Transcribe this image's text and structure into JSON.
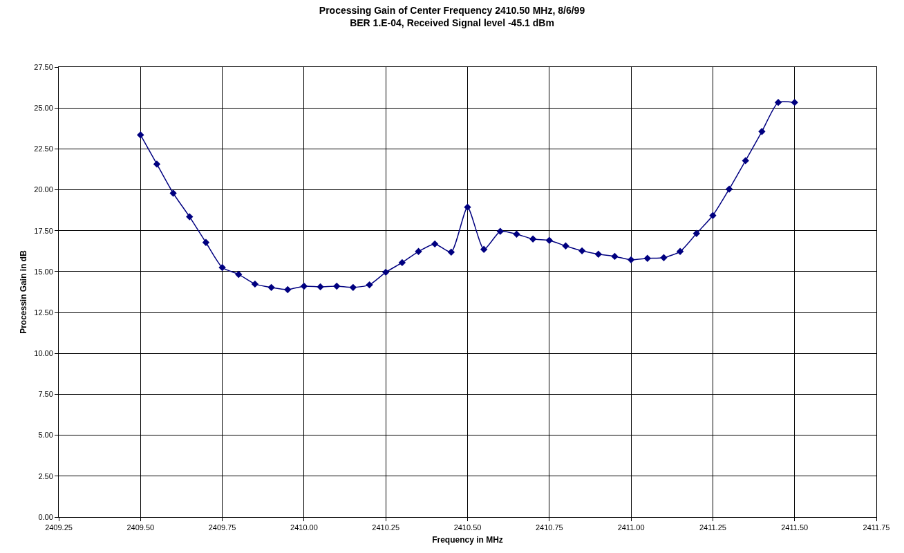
{
  "chart_data": {
    "type": "line",
    "title": "Processing Gain of Center Frequency 2410.50 MHz, 8/6/99\nBER 1.E-04, Received Signal level -45.1 dBm",
    "xlabel": "Frequency in MHz",
    "ylabel": "Processin Gain in dB",
    "x": [
      2409.5,
      2409.55,
      2409.6,
      2409.65,
      2409.7,
      2409.75,
      2409.8,
      2409.85,
      2409.9,
      2409.95,
      2410,
      2410.05,
      2410.1,
      2410.15,
      2410.2,
      2410.25,
      2410.3,
      2410.35,
      2410.4,
      2410.45,
      2410.5,
      2410.55,
      2410.6,
      2410.65,
      2410.7,
      2410.75,
      2410.8,
      2410.85,
      2410.9,
      2410.95,
      2411,
      2411.05,
      2411.1,
      2411.15,
      2411.2,
      2411.25,
      2411.3,
      2411.35,
      2411.4,
      2411.45,
      2411.5
    ],
    "series": [
      {
        "color": "#000080",
        "values": [
          23.35,
          21.57,
          19.79,
          18.35,
          16.78,
          15.25,
          14.83,
          14.24,
          14.03,
          13.9,
          14.11,
          14.07,
          14.11,
          14.03,
          14.19,
          14.96,
          15.55,
          16.23,
          16.69,
          16.19,
          18.94,
          16.36,
          17.46,
          17.29,
          16.99,
          16.91,
          16.57,
          16.27,
          16.06,
          15.93,
          15.72,
          15.81,
          15.85,
          16.23,
          17.33,
          18.43,
          20.04,
          21.78,
          23.56,
          25.34,
          25.34
        ]
      }
    ],
    "xlim": [
      2409.25,
      2411.75
    ],
    "xticks": [
      {
        "value": 2409.25,
        "label": "2409.25"
      },
      {
        "value": 2409.5,
        "label": "2409.50"
      },
      {
        "value": 2409.75,
        "label": "2409.75"
      },
      {
        "value": 2410,
        "label": "2410.00"
      },
      {
        "value": 2410.25,
        "label": "2410.25"
      },
      {
        "value": 2410.5,
        "label": "2410.50"
      },
      {
        "value": 2410.75,
        "label": "2410.75"
      },
      {
        "value": 2411,
        "label": "2411.00"
      },
      {
        "value": 2411.25,
        "label": "2411.25"
      },
      {
        "value": 2411.5,
        "label": "2411.50"
      },
      {
        "value": 2411.75,
        "label": "2411.75"
      }
    ],
    "ylim": [
      0,
      27.5
    ],
    "yticks": [
      {
        "value": 0,
        "label": "0.00"
      },
      {
        "value": 2.5,
        "label": "2.50"
      },
      {
        "value": 5,
        "label": "5.00"
      },
      {
        "value": 7.5,
        "label": "7.50"
      },
      {
        "value": 10,
        "label": "10.00"
      },
      {
        "value": 12.5,
        "label": "12.50"
      },
      {
        "value": 15,
        "label": "15.00"
      },
      {
        "value": 17.5,
        "label": "17.50"
      },
      {
        "value": 20,
        "label": "20.00"
      },
      {
        "value": 22.5,
        "label": "22.50"
      },
      {
        "value": 25,
        "label": "25.00"
      },
      {
        "value": 27.5,
        "label": "27.50"
      }
    ],
    "grid": true,
    "marker": "diamond",
    "line_style": "solid"
  }
}
